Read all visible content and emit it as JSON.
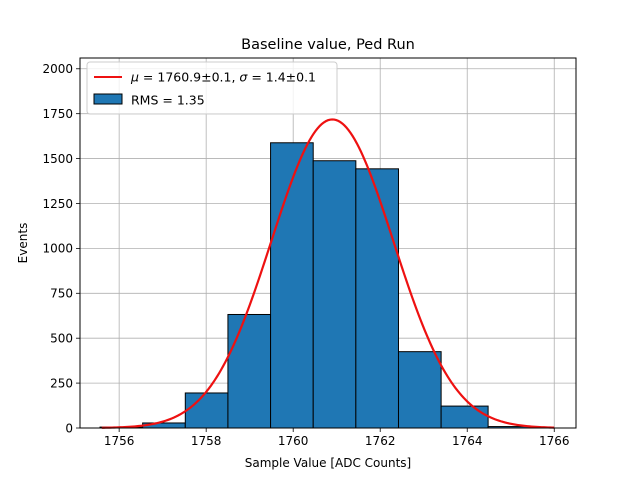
{
  "chart_data": {
    "type": "histogram",
    "title": "Baseline value, Ped Run",
    "xlabel": "Sample Value [ADC Counts]",
    "ylabel": "Events",
    "xlim": [
      1755.1,
      1766.5
    ],
    "ylim": [
      0,
      2060
    ],
    "xticks": [
      1756,
      1758,
      1760,
      1762,
      1764,
      1766
    ],
    "yticks": [
      0,
      250,
      500,
      750,
      1000,
      1250,
      1500,
      1750,
      2000
    ],
    "grid": true,
    "legend_position": "top-left",
    "bins": [
      {
        "left": 1755.56,
        "right": 1756.54,
        "count": 5
      },
      {
        "left": 1756.54,
        "right": 1757.52,
        "count": 28
      },
      {
        "left": 1757.52,
        "right": 1758.5,
        "count": 195
      },
      {
        "left": 1758.5,
        "right": 1759.48,
        "count": 632
      },
      {
        "left": 1759.48,
        "right": 1760.46,
        "count": 1588
      },
      {
        "left": 1760.46,
        "right": 1761.44,
        "count": 1488
      },
      {
        "left": 1761.44,
        "right": 1762.42,
        "count": 1443
      },
      {
        "left": 1762.42,
        "right": 1763.4,
        "count": 425
      },
      {
        "left": 1763.4,
        "right": 1764.48,
        "count": 122
      },
      {
        "left": 1764.48,
        "right": 1765.46,
        "count": 8
      }
    ],
    "fit": {
      "mu": 1760.9,
      "sigma": 1.4,
      "amplitude": 1718,
      "x_range": [
        1755.6,
        1766.0
      ]
    },
    "series": [
      {
        "name": "$\\mu = 1760.9 \\pm 0.1$, $\\sigma = 1.4 \\pm 0.1$",
        "kind": "line",
        "color": "#ee1111"
      },
      {
        "name": "RMS = 1.35",
        "kind": "bar",
        "color": "#1f77b4"
      }
    ],
    "legend": {
      "fit_label_parts": [
        "μ",
        " = 1760.9±0.1, ",
        "σ",
        " = 1.4±0.1"
      ],
      "bars_label": "RMS = 1.35"
    },
    "colors": {
      "bar_fill": "#1f77b4",
      "bar_edge": "#000000",
      "fit_line": "#ee1111",
      "grid": "#b0b0b0"
    }
  }
}
